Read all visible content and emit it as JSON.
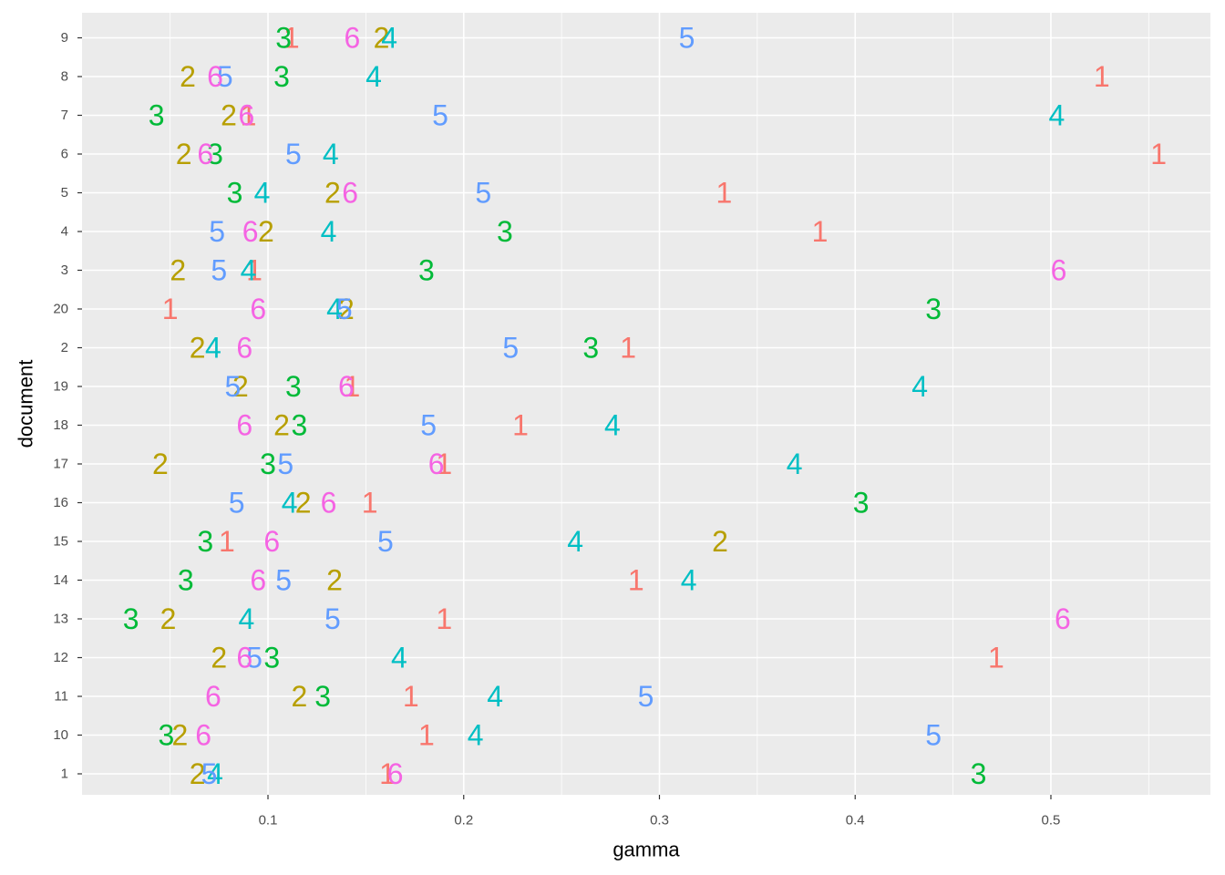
{
  "chart_data": {
    "type": "scatter",
    "x_label": "gamma",
    "y_label": "document",
    "xlim": [
      0.005,
      0.5815
    ],
    "xticks": [
      0.1,
      0.2,
      0.3,
      0.4,
      0.5
    ],
    "categories": [
      "1",
      "10",
      "11",
      "12",
      "13",
      "14",
      "15",
      "16",
      "17",
      "18",
      "19",
      "2",
      "20",
      "3",
      "4",
      "5",
      "6",
      "7",
      "8",
      "9"
    ],
    "grid": true,
    "series": [
      {
        "name": "1",
        "color": "#F8766D",
        "values": [
          0.161,
          0.181,
          0.173,
          0.472,
          0.19,
          0.288,
          0.079,
          0.152,
          0.19,
          0.229,
          0.143,
          0.284,
          0.05,
          0.093,
          0.382,
          0.333,
          0.555,
          0.09,
          0.526,
          0.112
        ]
      },
      {
        "name": "2",
        "color": "#B79F00",
        "values": [
          0.064,
          0.055,
          0.116,
          0.075,
          0.049,
          0.134,
          0.331,
          0.118,
          0.045,
          0.107,
          0.086,
          0.064,
          0.14,
          0.054,
          0.099,
          0.133,
          0.057,
          0.08,
          0.059,
          0.158
        ]
      },
      {
        "name": "3",
        "color": "#00BA38",
        "values": [
          0.463,
          0.048,
          0.128,
          0.102,
          0.03,
          0.058,
          0.068,
          0.403,
          0.1,
          0.116,
          0.113,
          0.265,
          0.44,
          0.181,
          0.221,
          0.083,
          0.073,
          0.043,
          0.107,
          0.108
        ]
      },
      {
        "name": "4",
        "color": "#00BFC4",
        "values": [
          0.073,
          0.206,
          0.216,
          0.167,
          0.089,
          0.315,
          0.257,
          0.111,
          0.369,
          0.276,
          0.433,
          0.072,
          0.134,
          0.09,
          0.131,
          0.097,
          0.132,
          0.503,
          0.154,
          0.162
        ]
      },
      {
        "name": "5",
        "color": "#619CFF",
        "values": [
          0.07,
          0.44,
          0.293,
          0.093,
          0.133,
          0.108,
          0.16,
          0.084,
          0.109,
          0.182,
          0.082,
          0.224,
          0.139,
          0.075,
          0.074,
          0.21,
          0.113,
          0.188,
          0.078,
          0.314
        ]
      },
      {
        "name": "6",
        "color": "#F564E3",
        "values": [
          0.165,
          0.067,
          0.072,
          0.088,
          0.506,
          0.095,
          0.102,
          0.131,
          0.186,
          0.088,
          0.14,
          0.088,
          0.095,
          0.504,
          0.091,
          0.142,
          0.068,
          0.089,
          0.073,
          0.143
        ]
      }
    ]
  }
}
